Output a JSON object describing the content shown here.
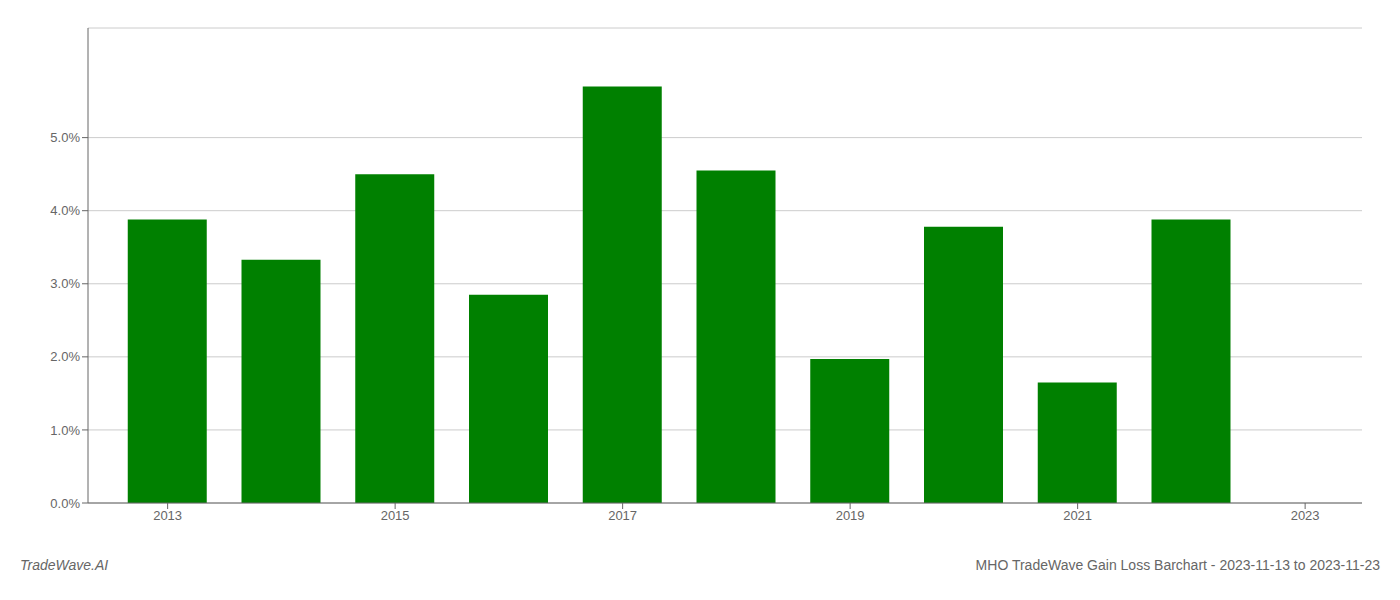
{
  "chart_data": {
    "type": "bar",
    "x": [
      2013,
      2014,
      2015,
      2016,
      2017,
      2018,
      2019,
      2020,
      2021,
      2022
    ],
    "values": [
      0.0388,
      0.0333,
      0.045,
      0.0285,
      0.057,
      0.0455,
      0.0197,
      0.0378,
      0.0165,
      0.0388
    ],
    "color": "#008000",
    "xlim": [
      2012.3,
      2023.5
    ],
    "xticks": [
      2013,
      2015,
      2017,
      2019,
      2021,
      2023
    ],
    "ylim": [
      0,
      0.065
    ],
    "yticks": [
      {
        "value": 0.0,
        "label": "0.0%"
      },
      {
        "value": 0.01,
        "label": "1.0%"
      },
      {
        "value": 0.02,
        "label": "2.0%"
      },
      {
        "value": 0.03,
        "label": "3.0%"
      },
      {
        "value": 0.04,
        "label": "4.0%"
      },
      {
        "value": 0.05,
        "label": "5.0%"
      }
    ],
    "grid": true,
    "annotations": [
      "TradeWave.AI",
      "MHO TradeWave Gain Loss Barchart - 2023-11-13 to 2023-11-23"
    ]
  }
}
